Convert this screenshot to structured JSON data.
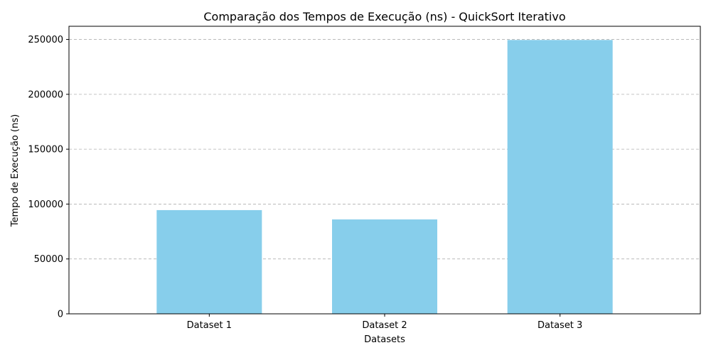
{
  "chart_data": {
    "type": "bar",
    "title": "Comparação dos Tempos de Execução (ns) - QuickSort Iterativo",
    "xlabel": "Datasets",
    "ylabel": "Tempo de Execução (ns)",
    "categories": [
      "Dataset 1",
      "Dataset 2",
      "Dataset 3"
    ],
    "values": [
      94500,
      86000,
      249500
    ],
    "ylim": [
      0,
      262000
    ],
    "yticks": [
      0,
      50000,
      100000,
      150000,
      200000,
      250000
    ],
    "ytick_labels": [
      "0",
      "50000",
      "100000",
      "150000",
      "200000",
      "250000"
    ],
    "grid": true,
    "bar_color": "#87CEEB",
    "grid_color": "#b0b0b0"
  }
}
